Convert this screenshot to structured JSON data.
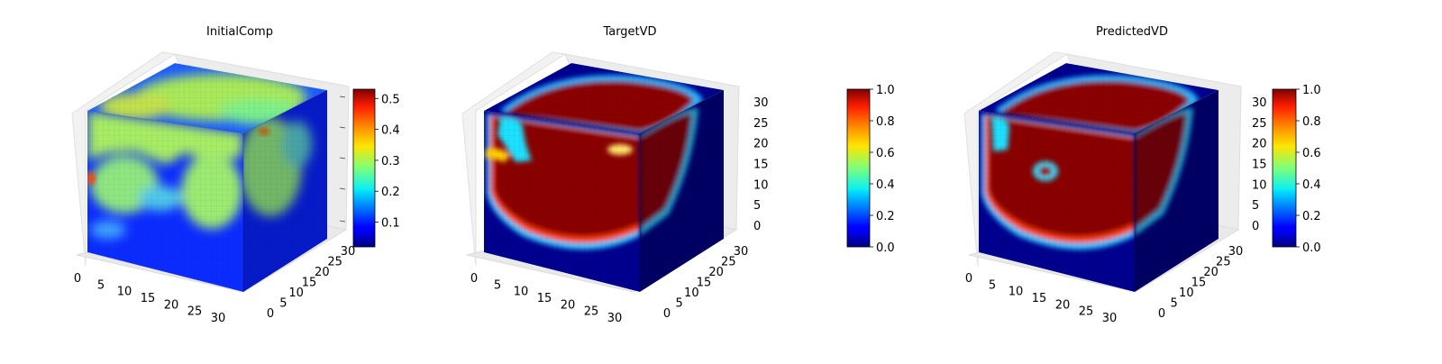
{
  "chart_data": [
    {
      "type": "heatmap",
      "subtype": "3d-voxel",
      "title": "InitialComp",
      "colormap": "jet",
      "x_ticks": [
        "0",
        "5",
        "10",
        "15",
        "20",
        "25",
        "30"
      ],
      "y_ticks": [
        "0",
        "5",
        "10",
        "15",
        "20",
        "25",
        "30"
      ],
      "z_ticks": [],
      "colorbar": {
        "range": [
          0.02,
          0.53
        ],
        "ticks": [
          "0.1",
          "0.2",
          "0.3",
          "0.4",
          "0.5"
        ],
        "tick_values": [
          0.1,
          0.2,
          0.3,
          0.4,
          0.5
        ]
      }
    },
    {
      "type": "heatmap",
      "subtype": "3d-voxel",
      "title": "TargetVD",
      "colormap": "jet",
      "x_ticks": [
        "0",
        "5",
        "10",
        "15",
        "20",
        "25",
        "30"
      ],
      "y_ticks": [
        "0",
        "5",
        "10",
        "15",
        "20",
        "25",
        "30"
      ],
      "z_ticks": [
        "0",
        "5",
        "10",
        "15",
        "20",
        "25",
        "30"
      ],
      "colorbar": {
        "range": [
          0.0,
          1.0
        ],
        "ticks": [
          "0.0",
          "0.2",
          "0.4",
          "0.6",
          "0.8",
          "1.0"
        ],
        "tick_values": [
          0,
          0.2,
          0.4,
          0.6,
          0.8,
          1.0
        ]
      }
    },
    {
      "type": "heatmap",
      "subtype": "3d-voxel",
      "title": "PredictedVD",
      "colormap": "jet",
      "x_ticks": [
        "0",
        "5",
        "10",
        "15",
        "20",
        "25",
        "30"
      ],
      "y_ticks": [
        "0",
        "5",
        "10",
        "15",
        "20",
        "25",
        "30"
      ],
      "z_ticks": [
        "0",
        "5",
        "10",
        "15",
        "20",
        "25",
        "30"
      ],
      "colorbar": {
        "range": [
          0.0,
          1.0
        ],
        "ticks": [
          "0.0",
          "0.2",
          "0.4",
          "0.6",
          "0.8",
          "1.0"
        ],
        "tick_values": [
          0,
          0.2,
          0.4,
          0.6,
          0.8,
          1.0
        ]
      }
    }
  ]
}
